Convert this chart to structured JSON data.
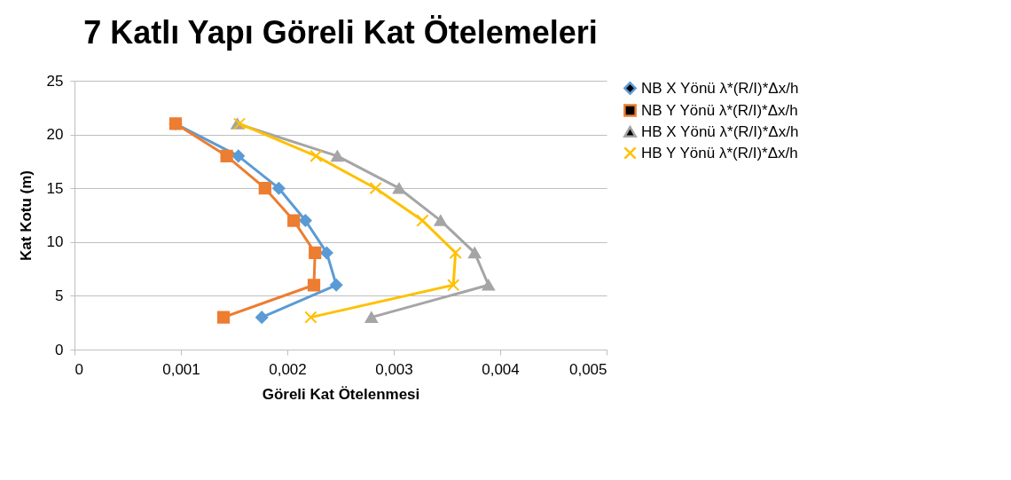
{
  "chart_data": {
    "type": "line",
    "title": "7 Katlı Yapı Göreli Kat Ötelemeleri",
    "xlabel": "Göreli Kat Ötelenmesi",
    "ylabel": "Kat Kotu (m)",
    "series": [
      {
        "name": "NB X Yönü λ*(R/I)*Δx/h",
        "color": "#5b9bd5",
        "marker": "diamond",
        "x": [
          0.00176,
          0.00246,
          0.00237,
          0.00217,
          0.00192,
          0.00154,
          0.00095
        ],
        "values": [
          3,
          6,
          9,
          12,
          15,
          18,
          21
        ]
      },
      {
        "name": "NB Y Yönü λ*(R/I)*Δx/h",
        "color": "#ed7d31",
        "marker": "square",
        "x": [
          0.0014,
          0.00225,
          0.00226,
          0.00206,
          0.00179,
          0.00143,
          0.00095
        ],
        "values": [
          3,
          6,
          9,
          12,
          15,
          18,
          21
        ]
      },
      {
        "name": "HB X Yönü λ*(R/I)*Δx/h",
        "color": "#a5a5a5",
        "marker": "triangle",
        "x": [
          0.00279,
          0.00389,
          0.00376,
          0.00344,
          0.00305,
          0.00247,
          0.00153
        ],
        "values": [
          3,
          6,
          9,
          12,
          15,
          18,
          21
        ]
      },
      {
        "name": "HB Y Yönü λ*(R/I)*Δx/h",
        "color": "#ffc000",
        "marker": "cross",
        "x": [
          0.00222,
          0.00356,
          0.00358,
          0.00327,
          0.00283,
          0.00227,
          0.00155
        ],
        "values": [
          3,
          6,
          9,
          12,
          15,
          18,
          21
        ]
      }
    ],
    "xlim": [
      0,
      0.005
    ],
    "xticks": [
      {
        "value": 0,
        "label": "0"
      },
      {
        "value": 0.001,
        "label": "0,001"
      },
      {
        "value": 0.002,
        "label": "0,002"
      },
      {
        "value": 0.003,
        "label": "0,003"
      },
      {
        "value": 0.004,
        "label": "0,004"
      },
      {
        "value": 0.005,
        "label": "0,005"
      }
    ],
    "ylim": [
      0,
      25
    ],
    "yticks": [
      0,
      5,
      10,
      15,
      20,
      25
    ],
    "grid": "y",
    "legend": "right",
    "line_style": "solid"
  }
}
